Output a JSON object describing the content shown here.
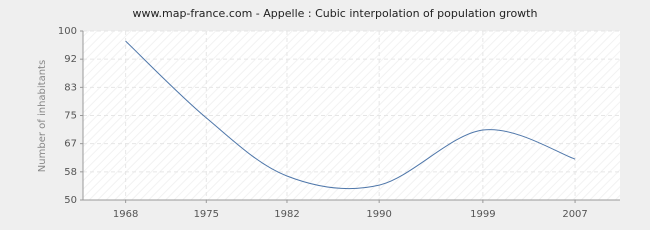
{
  "chart_data": {
    "type": "line",
    "title": "www.map-france.com - Appelle : Cubic interpolation of population growth",
    "y_label": "Number of inhabitants",
    "x": [
      1968,
      1975,
      1982,
      1990,
      1999,
      2007
    ],
    "series": [
      {
        "name": "Appelle",
        "color": "#4f77aa",
        "values": [
          97,
          74.3,
          57.1,
          54.4,
          70.7,
          62.1
        ]
      }
    ],
    "xlim": [
      1964.3,
      2010.9
    ],
    "xticks": [
      1968,
      1975,
      1982,
      1990,
      1999,
      2007
    ],
    "ylim": [
      50,
      100
    ],
    "yticks": [
      50,
      {
        "value": 58.33,
        "label": "58"
      },
      {
        "value": 66.67,
        "label": "67"
      },
      75,
      {
        "value": 83.33,
        "label": "83"
      },
      {
        "value": 91.67,
        "label": "92"
      },
      100
    ],
    "grid": true
  }
}
